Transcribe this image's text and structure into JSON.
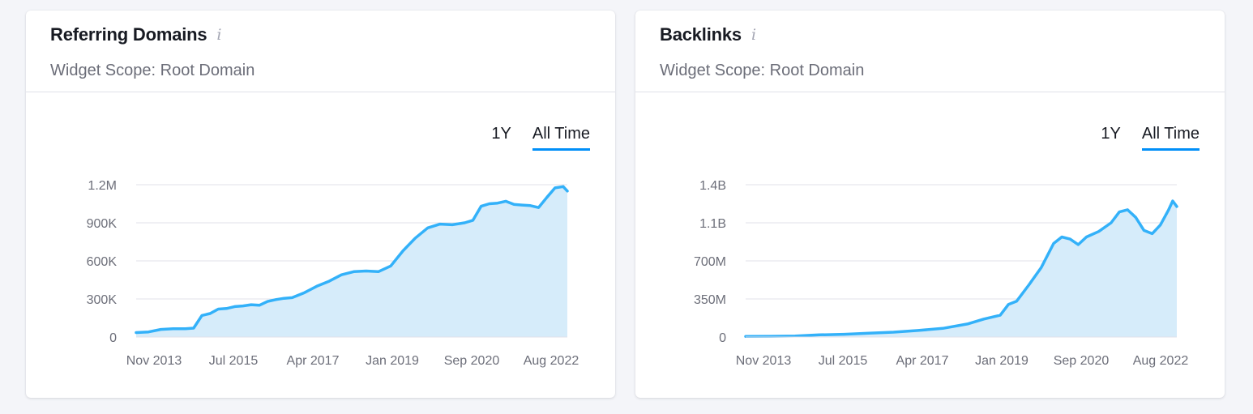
{
  "widgets": [
    {
      "title": "Referring Domains",
      "info_icon": "info-icon",
      "subtitle": "Widget Scope: Root Domain",
      "period_options": [
        "1Y",
        "All Time"
      ],
      "selected_period": "All Time"
    },
    {
      "title": "Backlinks",
      "info_icon": "info-icon",
      "subtitle": "Widget Scope: Root Domain",
      "period_options": [
        "1Y",
        "All Time"
      ],
      "selected_period": "All Time"
    }
  ],
  "colors": {
    "line": "#33b1f9",
    "area": "#d6ecfa",
    "grid": "#e0e1e9",
    "tab_underline": "#008ff8"
  },
  "chart_data": [
    {
      "type": "area",
      "x_tick_labels": [
        "Nov 2013",
        "Jul 2015",
        "Apr 2017",
        "Jan 2019",
        "Sep 2020",
        "Aug 2022"
      ],
      "y_tick_labels": [
        "0",
        "300K",
        "600K",
        "900K",
        "1.2M"
      ],
      "ylim": [
        0,
        1200000
      ],
      "grid": true,
      "x": [
        "2013-11",
        "2014-02",
        "2014-05",
        "2014-08",
        "2014-11",
        "2015-01",
        "2015-03",
        "2015-05",
        "2015-07",
        "2015-09",
        "2015-11",
        "2016-01",
        "2016-03",
        "2016-05",
        "2016-07",
        "2016-09",
        "2016-11",
        "2017-01",
        "2017-04",
        "2017-07",
        "2017-10",
        "2018-01",
        "2018-04",
        "2018-07",
        "2018-10",
        "2019-01",
        "2019-04",
        "2019-07",
        "2019-10",
        "2020-01",
        "2020-04",
        "2020-07",
        "2020-09",
        "2020-11",
        "2021-01",
        "2021-03",
        "2021-05",
        "2021-07",
        "2021-09",
        "2021-11",
        "2022-01",
        "2022-03",
        "2022-05",
        "2022-07",
        "2022-08"
      ],
      "series": [
        {
          "values": [
            35000,
            40000,
            60000,
            65000,
            65000,
            70000,
            170000,
            185000,
            220000,
            225000,
            240000,
            245000,
            255000,
            250000,
            280000,
            295000,
            305000,
            310000,
            350000,
            400000,
            440000,
            490000,
            515000,
            520000,
            515000,
            560000,
            680000,
            780000,
            860000,
            890000,
            885000,
            900000,
            920000,
            1030000,
            1050000,
            1055000,
            1070000,
            1045000,
            1040000,
            1035000,
            1020000,
            1100000,
            1175000,
            1185000,
            1150000
          ]
        }
      ]
    },
    {
      "type": "area",
      "x_tick_labels": [
        "Nov 2013",
        "Jul 2015",
        "Apr 2017",
        "Jan 2019",
        "Sep 2020",
        "Aug 2022"
      ],
      "y_tick_labels": [
        "0",
        "350M",
        "700M",
        "1.1B",
        "1.4B"
      ],
      "ylim": [
        0,
        1400000000
      ],
      "grid": true,
      "x": [
        "2013-11",
        "2014-05",
        "2014-11",
        "2015-05",
        "2015-11",
        "2016-05",
        "2016-11",
        "2017-05",
        "2017-11",
        "2018-05",
        "2018-09",
        "2019-01",
        "2019-03",
        "2019-05",
        "2019-08",
        "2019-11",
        "2020-02",
        "2020-04",
        "2020-06",
        "2020-08",
        "2020-10",
        "2021-01",
        "2021-04",
        "2021-06",
        "2021-08",
        "2021-10",
        "2021-12",
        "2022-02",
        "2022-04",
        "2022-06",
        "2022-07",
        "2022-08"
      ],
      "series": [
        {
          "values": [
            5000000,
            7000000,
            10000000,
            20000000,
            25000000,
            35000000,
            45000000,
            60000000,
            80000000,
            120000000,
            165000000,
            200000000,
            300000000,
            330000000,
            480000000,
            640000000,
            860000000,
            920000000,
            900000000,
            850000000,
            920000000,
            970000000,
            1050000000,
            1150000000,
            1170000000,
            1100000000,
            980000000,
            950000000,
            1030000000,
            1170000000,
            1250000000,
            1200000000
          ]
        }
      ]
    }
  ]
}
